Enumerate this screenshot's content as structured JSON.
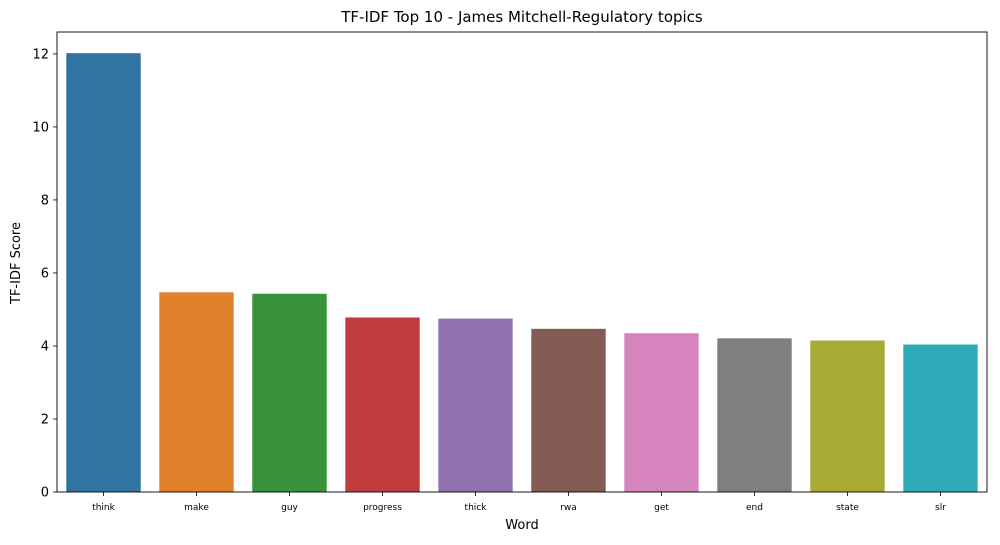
{
  "chart_data": {
    "type": "bar",
    "title": "TF-IDF Top 10 - James Mitchell-Regulatory topics",
    "xlabel": "Word",
    "ylabel": "TF-IDF Score",
    "categories": [
      "think",
      "make",
      "guy",
      "progress",
      "thick",
      "rwa",
      "get",
      "end",
      "state",
      "slr"
    ],
    "values": [
      12.02,
      5.47,
      5.43,
      4.78,
      4.75,
      4.47,
      4.35,
      4.21,
      4.15,
      4.04
    ],
    "colors": [
      "#3274a1",
      "#e1812c",
      "#3a923a",
      "#c03d3e",
      "#9372b2",
      "#845b53",
      "#d684bd",
      "#7f7f7f",
      "#a9aa35",
      "#2eabb8"
    ],
    "ylim": [
      0,
      12.6
    ],
    "yticks": [
      0,
      2,
      4,
      6,
      8,
      10,
      12
    ],
    "grid": false,
    "legend": "none"
  }
}
